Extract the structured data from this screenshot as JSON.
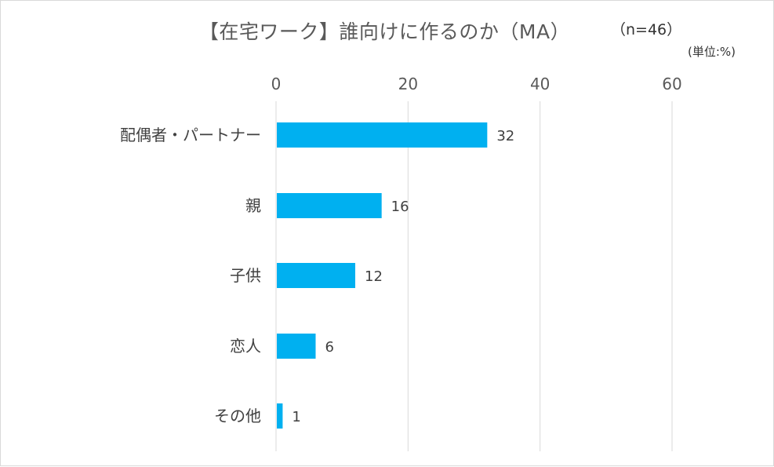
{
  "chart_data": {
    "type": "bar",
    "orientation": "horizontal",
    "title": "【在宅ワーク】誰向けに作るのか（MA）",
    "sample_size": "（n=46）",
    "unit": "(単位:%)",
    "categories": [
      "配偶者・パートナー",
      "親",
      "子供",
      "恋人",
      "その他"
    ],
    "values": [
      32,
      16,
      12,
      6,
      1
    ],
    "value_labels": [
      "32",
      "16",
      "12",
      "6",
      "1"
    ],
    "xlim": [
      0,
      60
    ],
    "ticks": [
      0,
      20,
      40,
      60
    ],
    "tick_labels": [
      "0",
      "20",
      "40",
      "60"
    ],
    "axis_position": "top",
    "grid": true,
    "legend": "none",
    "bar_color": "#00B0F0"
  }
}
